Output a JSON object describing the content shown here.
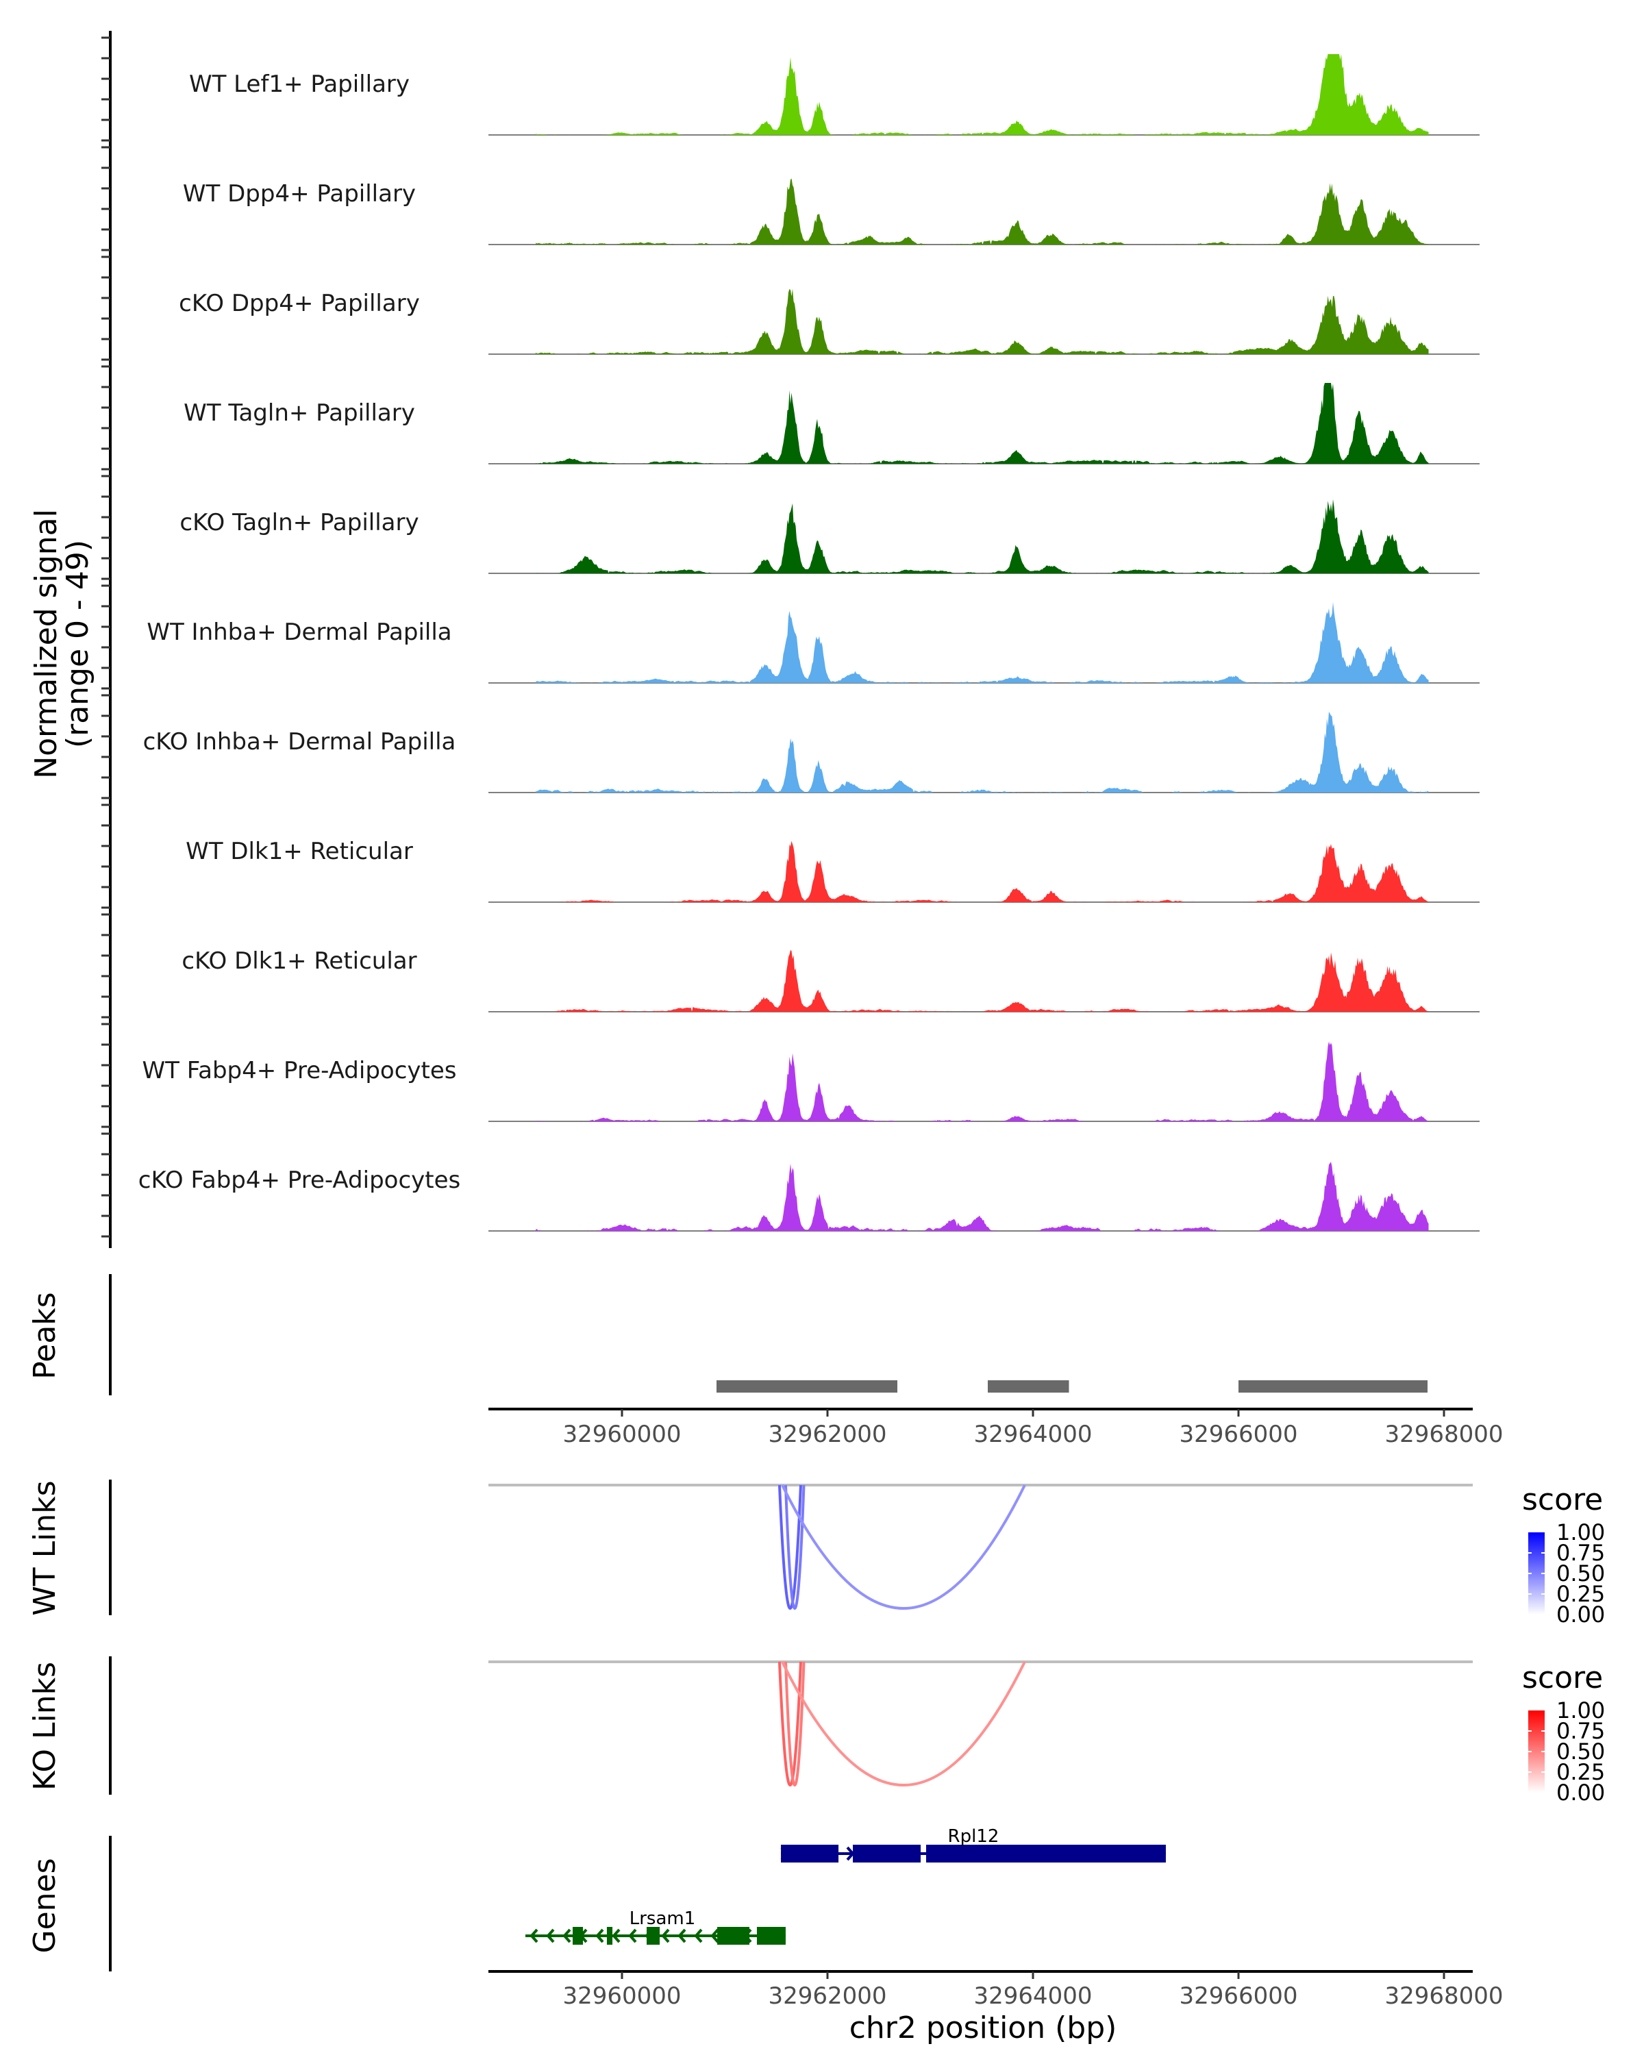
{
  "chart_data": {
    "type": "area",
    "title": "",
    "region": {
      "chrom": "chr2",
      "start": 32958700,
      "end": 32968280
    },
    "xlabel": "chr2 position (bp)",
    "x_ticks": [
      32960000,
      32962000,
      32964000,
      32966000,
      32968000
    ],
    "x_tick_labels": [
      "32960000",
      "32962000",
      "32964000",
      "32966000",
      "32968000"
    ],
    "coverage": {
      "ylabel_line1": "Normalized signal",
      "ylabel_line2": "(range 0 - 49)",
      "ylim": [
        0,
        49
      ],
      "signal_start": 32959160,
      "signal_end": 32967850,
      "tracks": [
        {
          "name": "WT Lef1+ Papillary",
          "color": "#66CD00",
          "noise": 0.8,
          "seed": 11,
          "peaks": [
            [
              32959980,
              1.5,
              60
            ],
            [
              32961393,
              7,
              50
            ],
            [
              32961647,
              42,
              55
            ],
            [
              32961913,
              18,
              45
            ],
            [
              32963840,
              8,
              60
            ],
            [
              32964180,
              3,
              80
            ],
            [
              32966500,
              2,
              120
            ],
            [
              32966893,
              44,
              90
            ],
            [
              32966960,
              30,
              60
            ],
            [
              32967180,
              22,
              70
            ],
            [
              32967480,
              16,
              90
            ],
            [
              32967760,
              3,
              40
            ]
          ]
        },
        {
          "name": "WT Dpp4+ Papillary",
          "color": "#458B00",
          "noise": 1.0,
          "seed": 23,
          "peaks": [
            [
              32961393,
              10,
              50
            ],
            [
              32961647,
              40,
              50
            ],
            [
              32961913,
              17,
              45
            ],
            [
              32962400,
              4,
              50
            ],
            [
              32962780,
              4,
              40
            ],
            [
              32963840,
              13,
              60
            ],
            [
              32964180,
              6,
              60
            ],
            [
              32966490,
              6,
              40
            ],
            [
              32966893,
              34,
              80
            ],
            [
              32967180,
              26,
              60
            ],
            [
              32967480,
              19,
              80
            ],
            [
              32967640,
              10,
              60
            ]
          ]
        },
        {
          "name": "cKO Dpp4+ Papillary",
          "color": "#458B00",
          "noise": 1.2,
          "seed": 37,
          "peaks": [
            [
              32961393,
              12,
              50
            ],
            [
              32961647,
              39,
              50
            ],
            [
              32961913,
              22,
              45
            ],
            [
              32963840,
              8,
              60
            ],
            [
              32964180,
              4,
              60
            ],
            [
              32966150,
              3,
              120
            ],
            [
              32966500,
              7,
              60
            ],
            [
              32966893,
              33,
              80
            ],
            [
              32967180,
              22,
              70
            ],
            [
              32967480,
              20,
              90
            ],
            [
              32967780,
              6,
              40
            ]
          ]
        },
        {
          "name": "WT Tagln+ Papillary",
          "color": "#006400",
          "noise": 1.0,
          "seed": 41,
          "peaks": [
            [
              32959500,
              2,
              60
            ],
            [
              32961393,
              6,
              50
            ],
            [
              32961647,
              41,
              45
            ],
            [
              32961913,
              25,
              40
            ],
            [
              32963840,
              6,
              50
            ],
            [
              32966400,
              4,
              80
            ],
            [
              32966893,
              44,
              40
            ],
            [
              32966820,
              30,
              60
            ],
            [
              32967180,
              29,
              60
            ],
            [
              32967480,
              18,
              80
            ],
            [
              32967780,
              7,
              30
            ]
          ]
        },
        {
          "name": "cKO Tagln+ Papillary",
          "color": "#006400",
          "noise": 1.1,
          "seed": 53,
          "peaks": [
            [
              32959650,
              8,
              80
            ],
            [
              32961393,
              9,
              50
            ],
            [
              32961647,
              38,
              50
            ],
            [
              32961913,
              18,
              45
            ],
            [
              32963840,
              14,
              40
            ],
            [
              32964180,
              4,
              60
            ],
            [
              32966500,
              5,
              60
            ],
            [
              32966893,
              42,
              80
            ],
            [
              32967180,
              24,
              60
            ],
            [
              32967480,
              22,
              80
            ],
            [
              32967780,
              4,
              40
            ]
          ]
        },
        {
          "name": "WT Inhba+ Dermal Papilla",
          "color": "#5CACEE",
          "noise": 0.9,
          "seed": 61,
          "peaks": [
            [
              32961393,
              9,
              60
            ],
            [
              32961647,
              40,
              55
            ],
            [
              32961913,
              28,
              45
            ],
            [
              32962250,
              6,
              80
            ],
            [
              32963840,
              3,
              80
            ],
            [
              32965950,
              4,
              60
            ],
            [
              32966893,
              45,
              80
            ],
            [
              32967180,
              20,
              70
            ],
            [
              32967480,
              20,
              70
            ],
            [
              32967790,
              4,
              30
            ]
          ]
        },
        {
          "name": "cKO Inhba+ Dermal Papilla",
          "color": "#5CACEE",
          "noise": 1.3,
          "seed": 73,
          "peaks": [
            [
              32961393,
              9,
              40
            ],
            [
              32961647,
              30,
              40
            ],
            [
              32961913,
              18,
              40
            ],
            [
              32962200,
              5,
              60
            ],
            [
              32962700,
              5,
              50
            ],
            [
              32966893,
              48,
              60
            ],
            [
              32967180,
              15,
              70
            ],
            [
              32967480,
              15,
              70
            ],
            [
              32966600,
              8,
              100
            ]
          ]
        },
        {
          "name": "WT Dlk1+ Reticular",
          "color": "#FF3030",
          "noise": 0.9,
          "seed": 83,
          "peaks": [
            [
              32961393,
              7,
              50
            ],
            [
              32961647,
              33,
              45
            ],
            [
              32961913,
              23,
              45
            ],
            [
              32962200,
              3,
              80
            ],
            [
              32963840,
              8,
              60
            ],
            [
              32964180,
              6,
              50
            ],
            [
              32966500,
              5,
              60
            ],
            [
              32966893,
              33,
              80
            ],
            [
              32967180,
              21,
              70
            ],
            [
              32967480,
              22,
              90
            ],
            [
              32967780,
              3,
              30
            ]
          ]
        },
        {
          "name": "cKO Dlk1+ Reticular",
          "color": "#FF3030",
          "noise": 1.0,
          "seed": 97,
          "peaks": [
            [
              32961393,
              8,
              60
            ],
            [
              32961647,
              33,
              50
            ],
            [
              32961913,
              12,
              45
            ],
            [
              32963840,
              5,
              60
            ],
            [
              32966400,
              3,
              90
            ],
            [
              32966893,
              32,
              80
            ],
            [
              32967180,
              30,
              70
            ],
            [
              32967480,
              26,
              90
            ],
            [
              32967780,
              3,
              30
            ]
          ]
        },
        {
          "name": "WT Fabp4+ Pre-Adipocytes",
          "color": "#B23AEE",
          "noise": 1.0,
          "seed": 101,
          "peaks": [
            [
              32961393,
              12,
              40
            ],
            [
              32961647,
              38,
              45
            ],
            [
              32961913,
              20,
              40
            ],
            [
              32962200,
              9,
              50
            ],
            [
              32963840,
              3,
              60
            ],
            [
              32966400,
              5,
              80
            ],
            [
              32966893,
              46,
              50
            ],
            [
              32967180,
              28,
              60
            ],
            [
              32967480,
              16,
              80
            ],
            [
              32967780,
              3,
              30
            ]
          ]
        },
        {
          "name": "cKO Fabp4+ Pre-Adipocytes",
          "color": "#B23AEE",
          "noise": 1.6,
          "seed": 113,
          "peaks": [
            [
              32961393,
              8,
              40
            ],
            [
              32961647,
              38,
              45
            ],
            [
              32961913,
              20,
              40
            ],
            [
              32963200,
              6,
              50
            ],
            [
              32963480,
              7,
              50
            ],
            [
              32966400,
              6,
              80
            ],
            [
              32966893,
              36,
              60
            ],
            [
              32967180,
              18,
              70
            ],
            [
              32967480,
              20,
              90
            ],
            [
              32967780,
              10,
              40
            ]
          ]
        }
      ]
    },
    "peaks_track": {
      "label": "Peaks",
      "color": "#696969",
      "ranges": [
        [
          32960920,
          32962680
        ],
        [
          32963560,
          32964350
        ],
        [
          32966000,
          32967840
        ]
      ]
    },
    "links": [
      {
        "label": "WT Links",
        "legend_title": "score",
        "low_color": "#FFFFFF",
        "high_color": "#0000FF",
        "legend_ticks": [
          "1.00",
          "0.75",
          "0.50",
          "0.25",
          "0.00"
        ],
        "arcs": [
          {
            "start": 32961533,
            "end": 32961740,
            "score": 0.62
          },
          {
            "start": 32961593,
            "end": 32961770,
            "score": 0.45
          },
          {
            "start": 32961560,
            "end": 32963920,
            "score": 0.3
          }
        ]
      },
      {
        "label": "KO Links",
        "legend_title": "score",
        "low_color": "#FFFFFF",
        "high_color": "#FF0000",
        "legend_ticks": [
          "1.00",
          "0.75",
          "0.50",
          "0.25",
          "0.00"
        ],
        "arcs": [
          {
            "start": 32961533,
            "end": 32961740,
            "score": 0.62
          },
          {
            "start": 32961593,
            "end": 32961770,
            "score": 0.45
          },
          {
            "start": 32961560,
            "end": 32963920,
            "score": 0.3
          }
        ]
      }
    ],
    "genes": {
      "label": "Genes",
      "items": [
        {
          "name": "Rpl12",
          "strand": "+",
          "color": "#00008B",
          "start": 32961547,
          "end": 32965293,
          "exons": [
            [
              32961547,
              32962107
            ],
            [
              32962247,
              32962907
            ],
            [
              32962960,
              32965293
            ]
          ]
        },
        {
          "name": "Lrsam1",
          "strand": "-",
          "color": "#006400",
          "start": 32959060,
          "end": 32961593,
          "exons": [
            [
              32959520,
              32959620
            ],
            [
              32959853,
              32959907
            ],
            [
              32960240,
              32960367
            ],
            [
              32960927,
              32961240
            ],
            [
              32961313,
              32961593
            ]
          ]
        }
      ]
    }
  }
}
